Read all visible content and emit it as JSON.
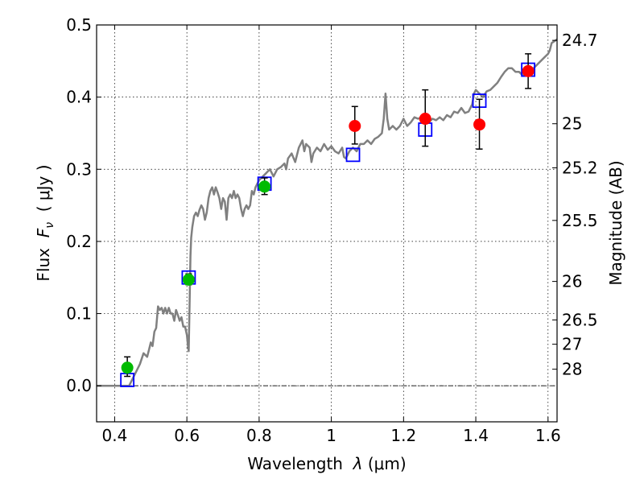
{
  "chart_data": {
    "type": "scatter",
    "xlabel_prefix": "Wavelength  ",
    "xlabel_symbol": "λ",
    "xlabel_suffix": " (μm)",
    "ylabel_prefix": "Flux  ",
    "ylabel_symbol": "F",
    "ylabel_subscript": "ν",
    "ylabel_suffix": "  ( μJy )",
    "y2label": "Magnitude (AB)",
    "xlim": [
      0.35,
      1.625
    ],
    "ylim": [
      -0.05,
      0.5
    ],
    "x_ticks": [
      {
        "value": 0.4,
        "label": "0.4"
      },
      {
        "value": 0.6,
        "label": "0.6"
      },
      {
        "value": 0.8,
        "label": "0.8"
      },
      {
        "value": 1.0,
        "label": "1"
      },
      {
        "value": 1.2,
        "label": "1.2"
      },
      {
        "value": 1.4,
        "label": "1.4"
      },
      {
        "value": 1.6,
        "label": "1.6"
      }
    ],
    "y_ticks": [
      {
        "value": 0.0,
        "label": "0.0"
      },
      {
        "value": 0.1,
        "label": "0.1"
      },
      {
        "value": 0.2,
        "label": "0.2"
      },
      {
        "value": 0.3,
        "label": "0.3"
      },
      {
        "value": 0.4,
        "label": "0.4"
      },
      {
        "value": 0.5,
        "label": "0.5"
      }
    ],
    "y2_ticks": [
      {
        "value": 24.7,
        "label": "24.7"
      },
      {
        "value": 25,
        "label": "25"
      },
      {
        "value": 25.2,
        "label": "25.2"
      },
      {
        "value": 25.5,
        "label": "25.5"
      },
      {
        "value": 26,
        "label": "26"
      },
      {
        "value": 26.5,
        "label": "26.5"
      },
      {
        "value": 27,
        "label": "27"
      },
      {
        "value": 28,
        "label": "28"
      }
    ],
    "grid": true,
    "zero_line": true,
    "colors": {
      "model_sed": "#808080",
      "blue_squares": "#0000ff",
      "green_points": "#00bb00",
      "red_points": "#ff0000",
      "error_bars": "#000000"
    },
    "series": [
      {
        "kind": "line",
        "color_key": "model_sed",
        "points": [
          [
            0.35,
            0.0
          ],
          [
            0.43,
            0.0
          ],
          [
            0.44,
            0.0
          ],
          [
            0.45,
            0.01
          ],
          [
            0.47,
            0.03
          ],
          [
            0.48,
            0.045
          ],
          [
            0.49,
            0.04
          ],
          [
            0.495,
            0.05
          ],
          [
            0.5,
            0.06
          ],
          [
            0.505,
            0.055
          ],
          [
            0.51,
            0.075
          ],
          [
            0.515,
            0.08
          ],
          [
            0.52,
            0.11
          ],
          [
            0.525,
            0.105
          ],
          [
            0.53,
            0.108
          ],
          [
            0.535,
            0.1
          ],
          [
            0.54,
            0.108
          ],
          [
            0.545,
            0.1
          ],
          [
            0.55,
            0.108
          ],
          [
            0.555,
            0.1
          ],
          [
            0.56,
            0.1
          ],
          [
            0.565,
            0.09
          ],
          [
            0.57,
            0.105
          ],
          [
            0.575,
            0.098
          ],
          [
            0.58,
            0.09
          ],
          [
            0.585,
            0.095
          ],
          [
            0.59,
            0.082
          ],
          [
            0.595,
            0.082
          ],
          [
            0.6,
            0.07
          ],
          [
            0.603,
            0.055
          ],
          [
            0.605,
            0.048
          ],
          [
            0.607,
            0.1
          ],
          [
            0.61,
            0.18
          ],
          [
            0.612,
            0.205
          ],
          [
            0.615,
            0.22
          ],
          [
            0.62,
            0.235
          ],
          [
            0.625,
            0.24
          ],
          [
            0.63,
            0.235
          ],
          [
            0.635,
            0.244
          ],
          [
            0.64,
            0.25
          ],
          [
            0.645,
            0.245
          ],
          [
            0.65,
            0.23
          ],
          [
            0.655,
            0.24
          ],
          [
            0.66,
            0.26
          ],
          [
            0.665,
            0.27
          ],
          [
            0.67,
            0.275
          ],
          [
            0.675,
            0.265
          ],
          [
            0.68,
            0.275
          ],
          [
            0.685,
            0.268
          ],
          [
            0.69,
            0.26
          ],
          [
            0.695,
            0.245
          ],
          [
            0.7,
            0.26
          ],
          [
            0.705,
            0.255
          ],
          [
            0.71,
            0.23
          ],
          [
            0.715,
            0.26
          ],
          [
            0.72,
            0.265
          ],
          [
            0.725,
            0.26
          ],
          [
            0.73,
            0.27
          ],
          [
            0.735,
            0.26
          ],
          [
            0.74,
            0.265
          ],
          [
            0.745,
            0.26
          ],
          [
            0.75,
            0.245
          ],
          [
            0.755,
            0.235
          ],
          [
            0.76,
            0.245
          ],
          [
            0.765,
            0.25
          ],
          [
            0.77,
            0.245
          ],
          [
            0.775,
            0.25
          ],
          [
            0.78,
            0.27
          ],
          [
            0.785,
            0.265
          ],
          [
            0.79,
            0.275
          ],
          [
            0.8,
            0.285
          ],
          [
            0.81,
            0.29
          ],
          [
            0.82,
            0.295
          ],
          [
            0.83,
            0.3
          ],
          [
            0.84,
            0.29
          ],
          [
            0.85,
            0.3
          ],
          [
            0.86,
            0.303
          ],
          [
            0.87,
            0.308
          ],
          [
            0.875,
            0.3
          ],
          [
            0.88,
            0.315
          ],
          [
            0.89,
            0.322
          ],
          [
            0.9,
            0.31
          ],
          [
            0.91,
            0.33
          ],
          [
            0.92,
            0.34
          ],
          [
            0.925,
            0.325
          ],
          [
            0.93,
            0.335
          ],
          [
            0.94,
            0.33
          ],
          [
            0.945,
            0.31
          ],
          [
            0.95,
            0.322
          ],
          [
            0.96,
            0.33
          ],
          [
            0.97,
            0.325
          ],
          [
            0.98,
            0.335
          ],
          [
            0.99,
            0.327
          ],
          [
            1.0,
            0.332
          ],
          [
            1.01,
            0.325
          ],
          [
            1.02,
            0.322
          ],
          [
            1.03,
            0.33
          ],
          [
            1.035,
            0.317
          ],
          [
            1.04,
            0.315
          ],
          [
            1.05,
            0.325
          ],
          [
            1.06,
            0.33
          ],
          [
            1.07,
            0.325
          ],
          [
            1.08,
            0.335
          ],
          [
            1.09,
            0.335
          ],
          [
            1.1,
            0.34
          ],
          [
            1.11,
            0.335
          ],
          [
            1.12,
            0.342
          ],
          [
            1.13,
            0.345
          ],
          [
            1.14,
            0.35
          ],
          [
            1.145,
            0.37
          ],
          [
            1.15,
            0.405
          ],
          [
            1.155,
            0.37
          ],
          [
            1.16,
            0.355
          ],
          [
            1.17,
            0.36
          ],
          [
            1.18,
            0.355
          ],
          [
            1.19,
            0.36
          ],
          [
            1.2,
            0.37
          ],
          [
            1.21,
            0.36
          ],
          [
            1.22,
            0.365
          ],
          [
            1.23,
            0.372
          ],
          [
            1.24,
            0.37
          ],
          [
            1.25,
            0.372
          ],
          [
            1.26,
            0.37
          ],
          [
            1.27,
            0.365
          ],
          [
            1.28,
            0.37
          ],
          [
            1.29,
            0.368
          ],
          [
            1.3,
            0.372
          ],
          [
            1.31,
            0.368
          ],
          [
            1.32,
            0.375
          ],
          [
            1.33,
            0.372
          ],
          [
            1.34,
            0.38
          ],
          [
            1.35,
            0.378
          ],
          [
            1.36,
            0.385
          ],
          [
            1.37,
            0.378
          ],
          [
            1.38,
            0.38
          ],
          [
            1.39,
            0.39
          ],
          [
            1.395,
            0.405
          ],
          [
            1.4,
            0.41
          ],
          [
            1.41,
            0.405
          ],
          [
            1.42,
            0.4
          ],
          [
            1.43,
            0.408
          ],
          [
            1.44,
            0.41
          ],
          [
            1.45,
            0.415
          ],
          [
            1.46,
            0.42
          ],
          [
            1.47,
            0.428
          ],
          [
            1.48,
            0.435
          ],
          [
            1.49,
            0.44
          ],
          [
            1.5,
            0.44
          ],
          [
            1.51,
            0.435
          ],
          [
            1.52,
            0.435
          ],
          [
            1.53,
            0.43
          ],
          [
            1.54,
            0.43
          ],
          [
            1.55,
            0.44
          ],
          [
            1.56,
            0.44
          ],
          [
            1.57,
            0.445
          ],
          [
            1.58,
            0.45
          ],
          [
            1.59,
            0.455
          ],
          [
            1.6,
            0.46
          ],
          [
            1.605,
            0.465
          ],
          [
            1.61,
            0.475
          ],
          [
            1.625,
            0.48
          ]
        ]
      },
      {
        "kind": "squares",
        "color_key": "blue_squares",
        "points": [
          [
            0.435,
            0.008
          ],
          [
            0.605,
            0.15
          ],
          [
            0.815,
            0.28
          ],
          [
            1.06,
            0.32
          ],
          [
            1.26,
            0.355
          ],
          [
            1.41,
            0.395
          ],
          [
            1.545,
            0.438
          ]
        ]
      },
      {
        "kind": "circles",
        "color_key": "green_points",
        "points": [
          {
            "x": 0.435,
            "y": 0.025,
            "lo": 0.013,
            "hi": 0.04
          },
          {
            "x": 0.605,
            "y": 0.147,
            "lo": 0.14,
            "hi": 0.155
          },
          {
            "x": 0.815,
            "y": 0.276,
            "lo": 0.265,
            "hi": 0.288
          }
        ]
      },
      {
        "kind": "circles",
        "color_key": "red_points",
        "points": [
          {
            "x": 1.065,
            "y": 0.36,
            "lo": 0.335,
            "hi": 0.387
          },
          {
            "x": 1.26,
            "y": 0.37,
            "lo": 0.332,
            "hi": 0.41
          },
          {
            "x": 1.41,
            "y": 0.362,
            "lo": 0.328,
            "hi": 0.397
          },
          {
            "x": 1.545,
            "y": 0.436,
            "lo": 0.412,
            "hi": 0.46
          }
        ]
      }
    ]
  }
}
